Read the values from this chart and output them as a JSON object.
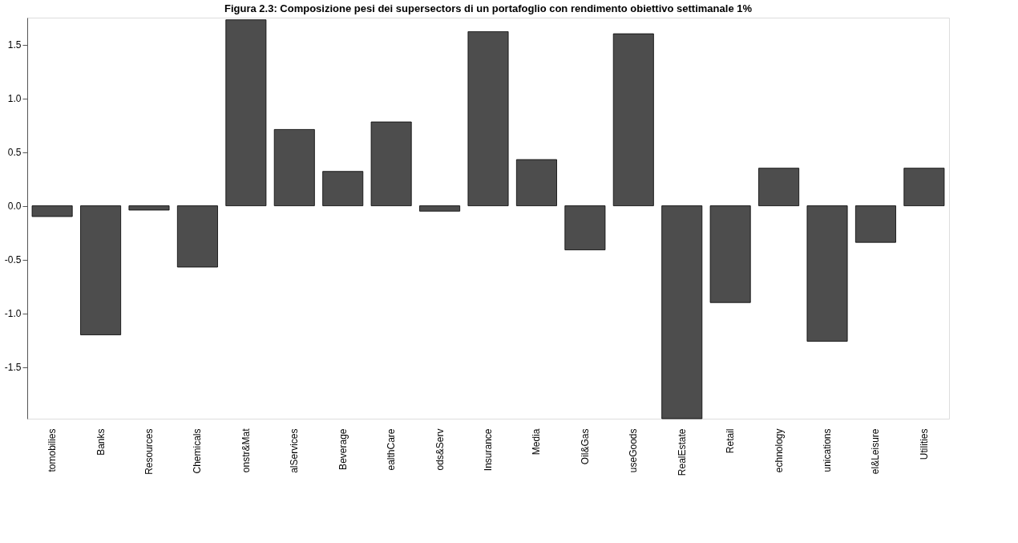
{
  "chart_data": {
    "type": "bar",
    "title": "Figura 2.3: Composizione pesi dei supersectors di un portafoglio con rendimento obiettivo settimanale 1%",
    "categories": [
      "tomobilies",
      "Banks",
      "Resources",
      "Chemicals",
      "onstr&Mat",
      "alServices",
      "Beverage",
      "ealthCare",
      "ods&Serv",
      "Insurance",
      "Media",
      "Oil&Gas",
      "useGoods",
      "RealEstate",
      "Retail",
      "echnology",
      "unications",
      "el&Leisure",
      "Utilities"
    ],
    "values": [
      -0.1,
      -1.2,
      -0.04,
      -0.57,
      1.73,
      0.71,
      0.32,
      0.78,
      -0.05,
      1.62,
      0.43,
      -0.41,
      1.6,
      -1.98,
      -0.9,
      0.35,
      -1.26,
      -0.34,
      0.35
    ],
    "color": "#4d4d4d",
    "ylim": [
      -1.98,
      1.75
    ],
    "yticks": [
      {
        "value": -1.5,
        "label": "-1.5"
      },
      {
        "value": -1.0,
        "label": "-1.0"
      },
      {
        "value": -0.5,
        "label": "-0.5"
      },
      {
        "value": 0,
        "label": "0.0"
      },
      {
        "value": 0.5,
        "label": "0.5"
      },
      {
        "value": 1.0,
        "label": "1.0"
      },
      {
        "value": 1.5,
        "label": "1.5"
      }
    ],
    "grid": false
  }
}
